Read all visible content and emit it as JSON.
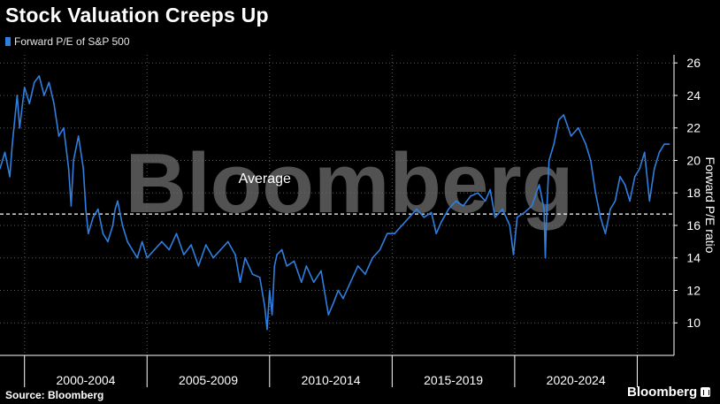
{
  "title": "Stock Valuation Creeps Up",
  "source": "Source: Bloomberg",
  "brand": "Bloomberg",
  "watermark": "Bloomberg",
  "colors": {
    "background": "#000000",
    "series": "#2e7fe0",
    "average_line": "#ffffff",
    "grid": "#5a5a5a",
    "axis_text": "#ffffff",
    "watermark": "#6e6e6e"
  },
  "chart_data": {
    "type": "line",
    "title": "Stock Valuation Creeps Up",
    "ylabel": "Forward P/E ratio",
    "xlabel": "",
    "ylim": [
      8,
      26.5
    ],
    "yticks": [
      10,
      12,
      14,
      16,
      18,
      20,
      22,
      24,
      26
    ],
    "x_range": [
      1998.0,
      2025.5
    ],
    "x_period_labels": [
      {
        "label": "2000-2004",
        "start": 1999.0,
        "end": 2004.0
      },
      {
        "label": "2005-2009",
        "start": 2004.0,
        "end": 2009.0
      },
      {
        "label": "2010-2014",
        "start": 2009.0,
        "end": 2014.0
      },
      {
        "label": "2015-2019",
        "start": 2014.0,
        "end": 2019.0
      },
      {
        "label": "2020-2024",
        "start": 2019.0,
        "end": 2024.0
      }
    ],
    "annotation": {
      "text": "Average",
      "value": 16.7
    },
    "legend": {
      "position": "top-left"
    },
    "grid": true,
    "series": [
      {
        "name": "Forward P/E of S&P 500",
        "x": [
          1998.0,
          1998.2,
          1998.4,
          1998.5,
          1998.7,
          1998.8,
          1999.0,
          1999.2,
          1999.4,
          1999.6,
          1999.8,
          2000.0,
          2000.2,
          2000.4,
          2000.6,
          2000.8,
          2000.9,
          2001.0,
          2001.2,
          2001.4,
          2001.5,
          2001.6,
          2001.8,
          2002.0,
          2002.2,
          2002.4,
          2002.6,
          2002.7,
          2002.8,
          2003.0,
          2003.2,
          2003.4,
          2003.6,
          2003.8,
          2004.0,
          2004.3,
          2004.6,
          2004.9,
          2005.2,
          2005.5,
          2005.8,
          2006.1,
          2006.4,
          2006.7,
          2007.0,
          2007.3,
          2007.6,
          2007.8,
          2008.0,
          2008.3,
          2008.6,
          2008.8,
          2008.9,
          2009.0,
          2009.1,
          2009.2,
          2009.3,
          2009.5,
          2009.7,
          2010.0,
          2010.3,
          2010.5,
          2010.8,
          2011.1,
          2011.4,
          2011.6,
          2011.8,
          2012.0,
          2012.3,
          2012.6,
          2012.9,
          2013.2,
          2013.5,
          2013.8,
          2014.1,
          2014.4,
          2014.7,
          2015.0,
          2015.3,
          2015.6,
          2015.8,
          2016.0,
          2016.3,
          2016.6,
          2016.9,
          2017.2,
          2017.5,
          2017.8,
          2018.0,
          2018.2,
          2018.5,
          2018.8,
          2018.95,
          2019.1,
          2019.4,
          2019.7,
          2020.0,
          2020.2,
          2020.25,
          2020.3,
          2020.4,
          2020.6,
          2020.8,
          2021.0,
          2021.3,
          2021.6,
          2021.9,
          2022.1,
          2022.3,
          2022.5,
          2022.7,
          2022.9,
          2023.1,
          2023.3,
          2023.5,
          2023.7,
          2023.9,
          2024.1,
          2024.3,
          2024.5,
          2024.7,
          2024.9,
          2025.1,
          2025.3
        ],
        "values": [
          19.5,
          20.5,
          19.0,
          21.0,
          24.0,
          22.0,
          24.5,
          23.5,
          24.8,
          25.2,
          24.0,
          24.8,
          23.5,
          21.5,
          22.0,
          19.5,
          17.2,
          20.0,
          21.5,
          19.5,
          17.0,
          15.5,
          16.5,
          17.0,
          15.5,
          15.0,
          16.0,
          17.0,
          17.5,
          16.0,
          15.0,
          14.5,
          14.0,
          15.0,
          14.0,
          14.5,
          15.0,
          14.5,
          15.5,
          14.2,
          14.8,
          13.5,
          14.8,
          14.0,
          14.5,
          15.0,
          14.2,
          12.5,
          14.0,
          13.0,
          12.8,
          11.0,
          9.6,
          12.0,
          10.5,
          13.5,
          14.2,
          14.5,
          13.5,
          13.8,
          12.5,
          13.5,
          12.5,
          13.2,
          10.5,
          11.2,
          12.0,
          11.5,
          12.5,
          13.5,
          13.0,
          14.0,
          14.5,
          15.5,
          15.5,
          16.0,
          16.5,
          17.0,
          16.5,
          16.8,
          15.5,
          16.2,
          17.0,
          17.5,
          17.2,
          17.8,
          18.0,
          17.5,
          18.2,
          16.5,
          17.0,
          16.0,
          14.2,
          16.5,
          16.8,
          17.2,
          18.5,
          17.0,
          14.0,
          16.5,
          20.0,
          21.0,
          22.5,
          22.8,
          21.5,
          22.0,
          21.0,
          20.0,
          18.0,
          16.5,
          15.5,
          17.0,
          17.5,
          19.0,
          18.5,
          17.5,
          19.0,
          19.5,
          20.5,
          17.5,
          19.5,
          20.5,
          21.0,
          21.0
        ]
      }
    ]
  }
}
